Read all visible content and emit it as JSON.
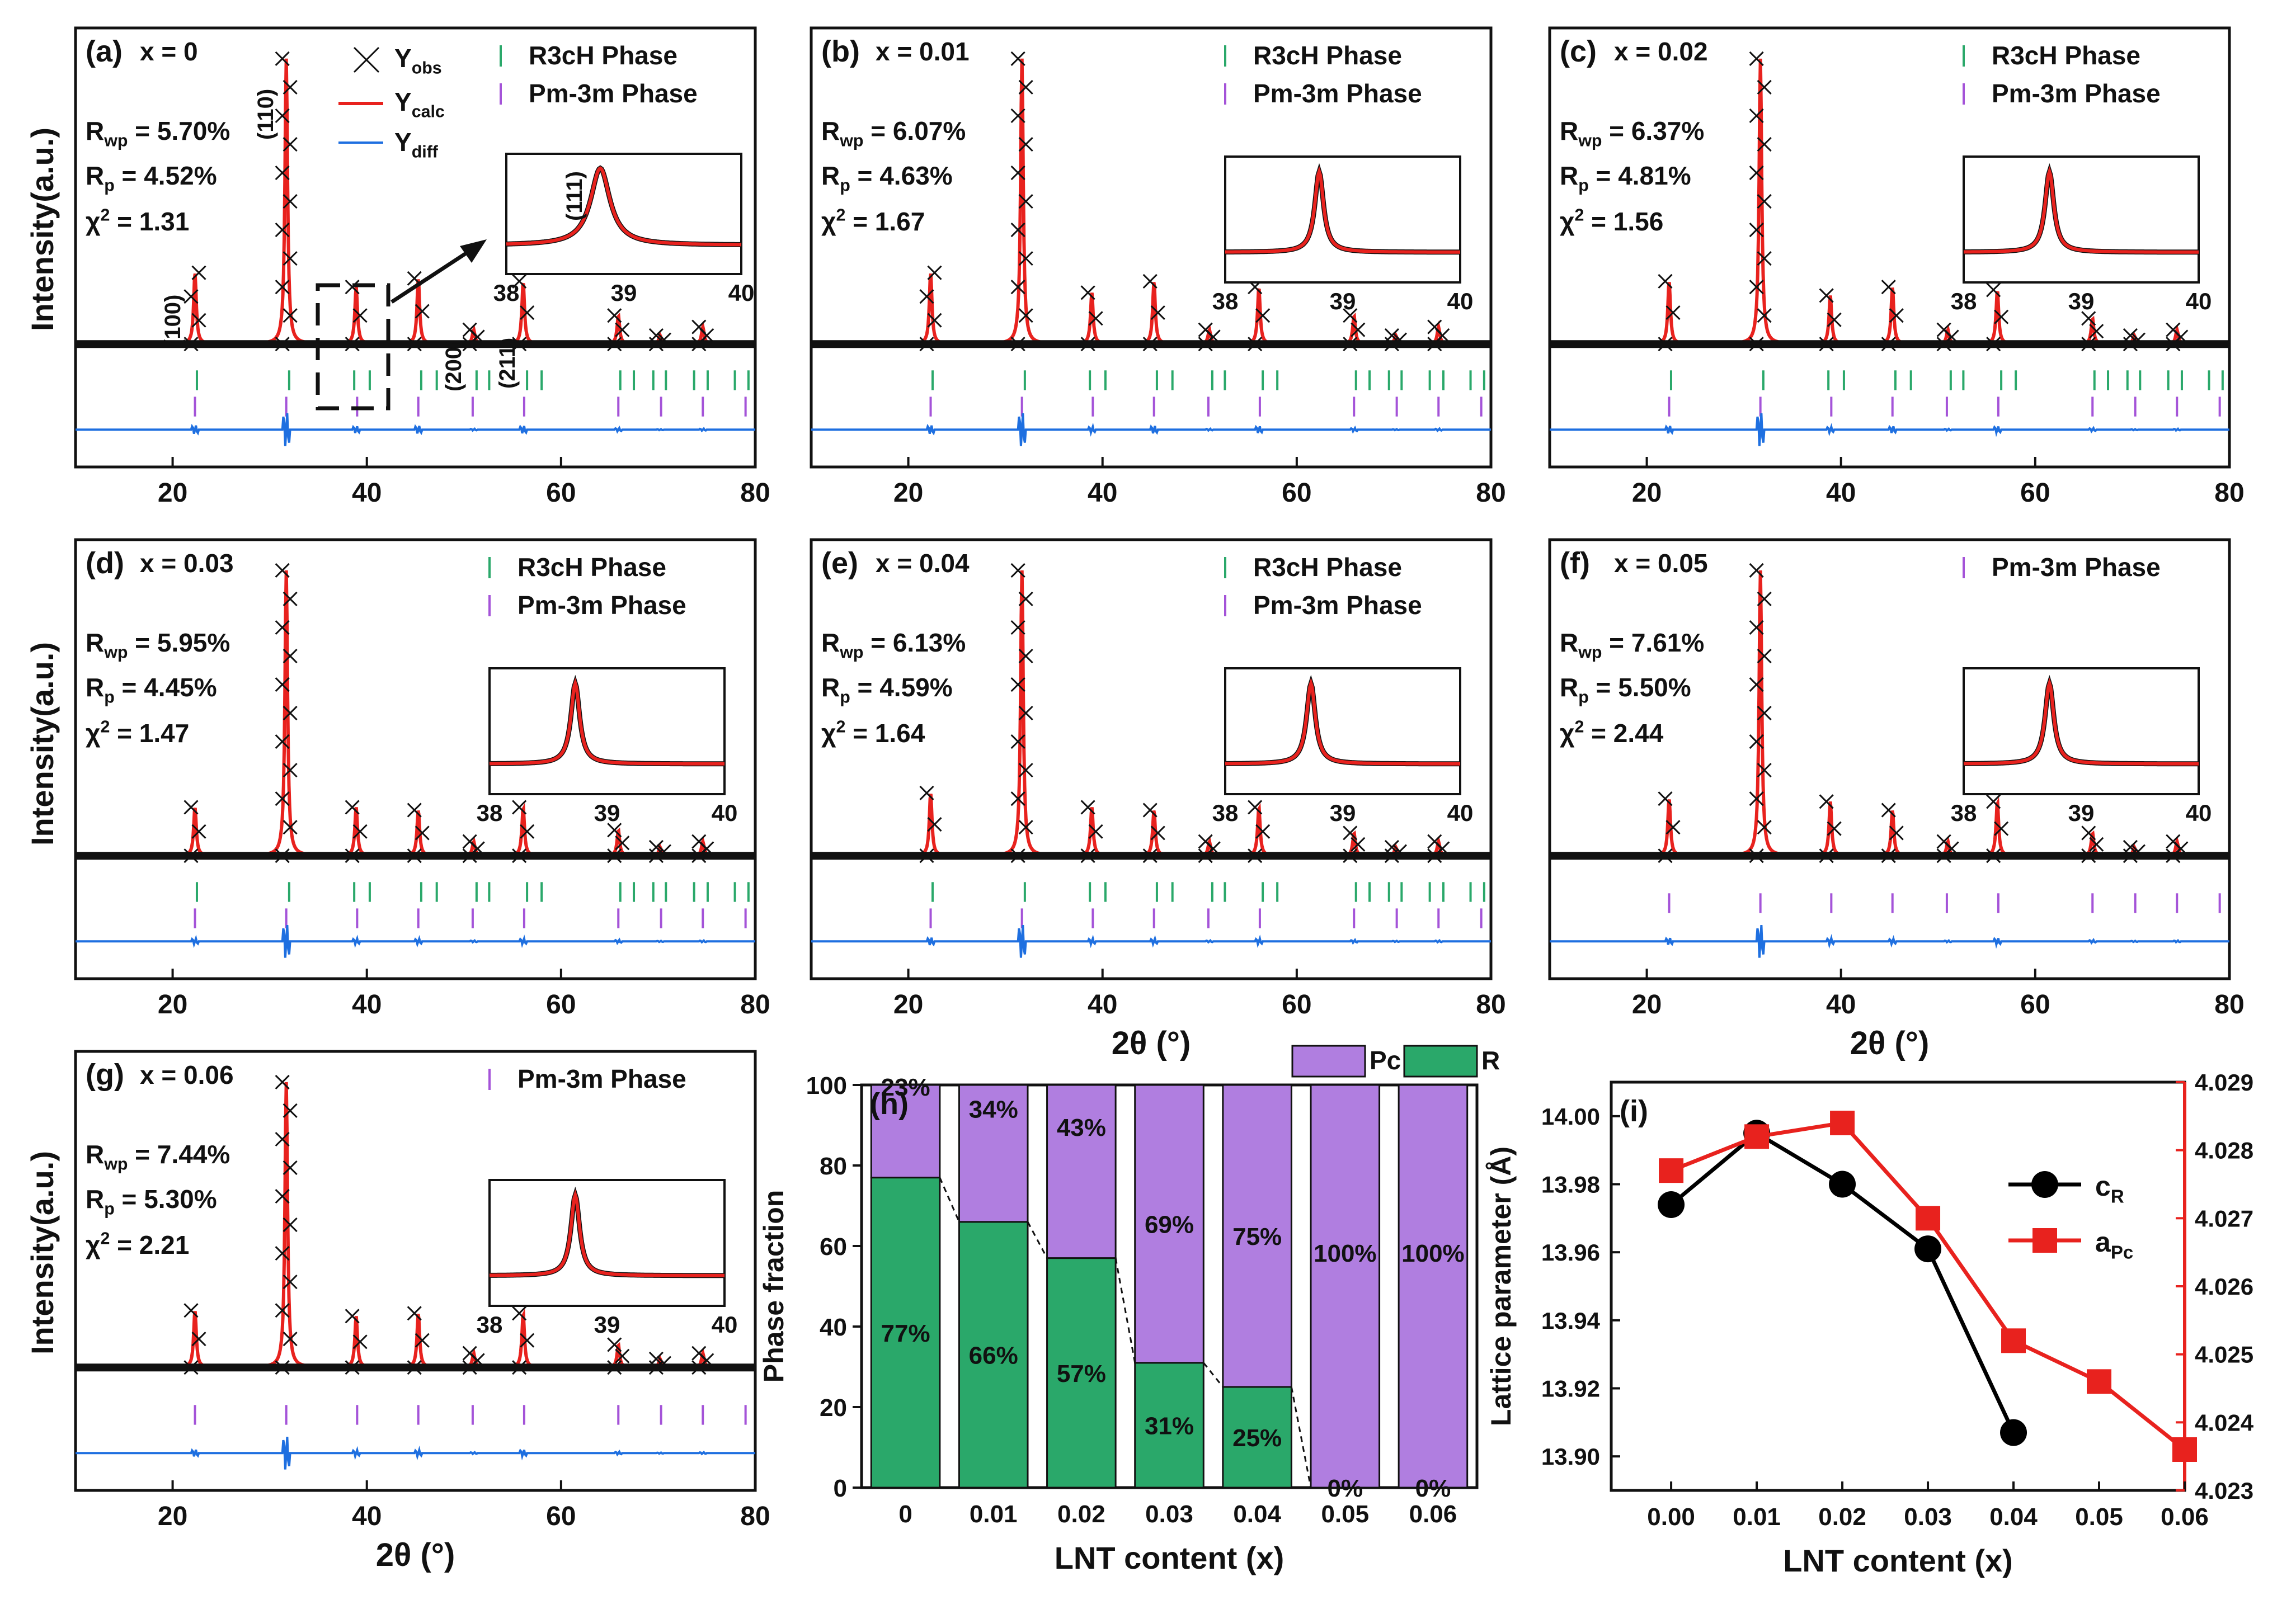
{
  "figure": {
    "shared_labels": {
      "x_axis_label": "2θ (°)",
      "y_axis_label": "Intensity(a.u.)",
      "inset_ticks": [
        "38",
        "39",
        "40"
      ],
      "x_ticks": [
        "20",
        "40",
        "60",
        "80"
      ]
    },
    "legend": {
      "obs": "Y",
      "obs_sub": "obs",
      "calc": "Y",
      "calc_sub": "calc",
      "diff": "Y",
      "diff_sub": "diff",
      "r3c": "R3cH Phase",
      "pm3m": "Pm-3m Phase"
    },
    "hkl_labels": [
      "(100)",
      "(110)",
      "(111)",
      "(200)",
      "(211)",
      "(111)"
    ],
    "colors": {
      "obs": "#111111",
      "calc": "#e8221e",
      "diff": "#1e6fe0",
      "r3c_tick": "#2aa86a",
      "pm3m_tick": "#a453d8",
      "pc_bar": "#b07ee0",
      "r_bar": "#2aa86a",
      "lattice_c": "#000000",
      "lattice_a": "#e8221e"
    }
  },
  "chart_data": [
    {
      "panel": "(a)",
      "type": "line",
      "composition": "x = 0",
      "rwp_label": "R",
      "rwp_sub": "wp",
      "rwp_value": " = 5.70%",
      "rp_label": "R",
      "rp_sub": "p",
      "rp_value": " = 4.52%",
      "chi_label": "χ",
      "chi_sup": "2",
      "chi_value": " = 1.31",
      "phases": [
        "R3cH Phase",
        "Pm-3m Phase"
      ],
      "xlim": [
        10,
        80
      ],
      "peaks": [
        [
          22.3,
          0.25
        ],
        [
          31.7,
          1.0
        ],
        [
          38.9,
          0.2
        ],
        [
          45.3,
          0.23
        ],
        [
          51.0,
          0.05
        ],
        [
          56.1,
          0.22
        ],
        [
          65.9,
          0.1
        ],
        [
          70.2,
          0.03
        ],
        [
          74.6,
          0.06
        ]
      ],
      "xlabel": ""
    },
    {
      "panel": "(b)",
      "type": "line",
      "composition": "x = 0.01",
      "rwp_label": "R",
      "rwp_sub": "wp",
      "rwp_value": " = 6.07%",
      "rp_label": "R",
      "rp_sub": "p",
      "rp_value": " = 4.63%",
      "chi_label": "χ",
      "chi_sup": "2",
      "chi_value": " = 1.67",
      "phases": [
        "R3cH Phase",
        "Pm-3m Phase"
      ],
      "xlim": [
        10,
        80
      ],
      "peaks": [
        [
          22.3,
          0.25
        ],
        [
          31.7,
          1.0
        ],
        [
          38.9,
          0.18
        ],
        [
          45.3,
          0.22
        ],
        [
          51.0,
          0.05
        ],
        [
          56.1,
          0.2
        ],
        [
          65.9,
          0.1
        ],
        [
          70.2,
          0.03
        ],
        [
          74.6,
          0.06
        ]
      ],
      "xlabel": ""
    },
    {
      "panel": "(c)",
      "type": "line",
      "composition": "x = 0.02",
      "rwp_label": "R",
      "rwp_sub": "wp",
      "rwp_value": " = 6.37%",
      "rp_label": "R",
      "rp_sub": "p",
      "rp_value": " = 4.81%",
      "chi_label": "χ",
      "chi_sup": "2",
      "chi_value": " = 1.56",
      "phases": [
        "R3cH Phase",
        "Pm-3m Phase"
      ],
      "xlim": [
        10,
        80
      ],
      "peaks": [
        [
          22.3,
          0.22
        ],
        [
          31.7,
          1.0
        ],
        [
          38.9,
          0.17
        ],
        [
          45.3,
          0.2
        ],
        [
          51.0,
          0.05
        ],
        [
          56.1,
          0.19
        ],
        [
          65.9,
          0.09
        ],
        [
          70.2,
          0.03
        ],
        [
          74.6,
          0.05
        ]
      ],
      "xlabel": ""
    },
    {
      "panel": "(d)",
      "type": "line",
      "composition": "x = 0.03",
      "rwp_label": "R",
      "rwp_sub": "wp",
      "rwp_value": " = 5.95%",
      "rp_label": "R",
      "rp_sub": "p",
      "rp_value": " = 4.45%",
      "chi_label": "χ",
      "chi_sup": "2",
      "chi_value": " = 1.47",
      "phases": [
        "R3cH Phase",
        "Pm-3m Phase"
      ],
      "xlim": [
        10,
        80
      ],
      "peaks": [
        [
          22.3,
          0.17
        ],
        [
          31.7,
          1.0
        ],
        [
          38.9,
          0.17
        ],
        [
          45.3,
          0.16
        ],
        [
          51.0,
          0.05
        ],
        [
          56.1,
          0.17
        ],
        [
          65.9,
          0.09
        ],
        [
          70.2,
          0.03
        ],
        [
          74.6,
          0.05
        ]
      ],
      "xlabel": ""
    },
    {
      "panel": "(e)",
      "type": "line",
      "composition": "x = 0.04",
      "rwp_label": "R",
      "rwp_sub": "wp",
      "rwp_value": " = 6.13%",
      "rp_label": "R",
      "rp_sub": "p",
      "rp_value": " = 4.59%",
      "chi_label": "χ",
      "chi_sup": "2",
      "chi_value": " = 1.64",
      "phases": [
        "R3cH Phase",
        "Pm-3m Phase"
      ],
      "xlim": [
        10,
        80
      ],
      "peaks": [
        [
          22.3,
          0.22
        ],
        [
          31.7,
          1.0
        ],
        [
          38.9,
          0.17
        ],
        [
          45.3,
          0.16
        ],
        [
          51.0,
          0.05
        ],
        [
          56.1,
          0.17
        ],
        [
          65.9,
          0.08
        ],
        [
          70.2,
          0.03
        ],
        [
          74.6,
          0.05
        ]
      ],
      "xlabel": "2θ (°)"
    },
    {
      "panel": "(f)",
      "type": "line",
      "composition": "x = 0.05",
      "rwp_label": "R",
      "rwp_sub": "wp",
      "rwp_value": " = 7.61%",
      "rp_label": "R",
      "rp_sub": "p",
      "rp_value": " = 5.50%",
      "chi_label": "χ",
      "chi_sup": "2",
      "chi_value": " = 2.44",
      "phases": [
        "Pm-3m Phase"
      ],
      "xlim": [
        10,
        80
      ],
      "peaks": [
        [
          22.3,
          0.2
        ],
        [
          31.7,
          1.0
        ],
        [
          38.9,
          0.19
        ],
        [
          45.3,
          0.16
        ],
        [
          51.0,
          0.05
        ],
        [
          56.1,
          0.19
        ],
        [
          65.9,
          0.08
        ],
        [
          70.2,
          0.03
        ],
        [
          74.6,
          0.05
        ]
      ],
      "xlabel": "2θ (°)"
    },
    {
      "panel": "(g)",
      "type": "line",
      "composition": "x = 0.06",
      "rwp_label": "R",
      "rwp_sub": "wp",
      "rwp_value": " = 7.44%",
      "rp_label": "R",
      "rp_sub": "p",
      "rp_value": " = 5.30%",
      "chi_label": "χ",
      "chi_sup": "2",
      "chi_value": " = 2.21",
      "phases": [
        "Pm-3m Phase"
      ],
      "xlim": [
        10,
        80
      ],
      "peaks": [
        [
          22.3,
          0.2
        ],
        [
          31.7,
          1.0
        ],
        [
          38.9,
          0.18
        ],
        [
          45.3,
          0.19
        ],
        [
          51.0,
          0.05
        ],
        [
          56.1,
          0.19
        ],
        [
          65.9,
          0.08
        ],
        [
          70.2,
          0.03
        ],
        [
          74.6,
          0.05
        ]
      ],
      "xlabel": "2θ (°)"
    },
    {
      "panel": "(h)",
      "type": "bar",
      "stacked": true,
      "xlabel": "LNT content (x)",
      "ylabel": "Phase fraction",
      "ylim": [
        0,
        100
      ],
      "yticks": [
        0,
        20,
        40,
        60,
        80,
        100
      ],
      "categories": [
        "0",
        "0.01",
        "0.02",
        "0.03",
        "0.04",
        "0.05",
        "0.06"
      ],
      "series": [
        {
          "name": "R",
          "values": [
            77,
            66,
            57,
            31,
            25,
            0,
            0
          ],
          "labels": [
            "77%",
            "66%",
            "57%",
            "31%",
            "25%",
            "0%",
            "0%"
          ]
        },
        {
          "name": "Pc",
          "values": [
            23,
            34,
            43,
            69,
            75,
            100,
            100
          ],
          "labels": [
            "23%",
            "34%",
            "43%",
            "69%",
            "75%",
            "100%",
            "100%"
          ]
        }
      ],
      "legend": [
        "Pc",
        "R"
      ]
    },
    {
      "panel": "(i)",
      "type": "line",
      "xlabel": "LNT content (x)",
      "ylabel": "Lattice parameter (Å)",
      "x": [
        0.0,
        0.01,
        0.02,
        0.03,
        0.04,
        0.05,
        0.06
      ],
      "xticks": [
        "0.00",
        "0.01",
        "0.02",
        "0.03",
        "0.04",
        "0.05",
        "0.06"
      ],
      "ylim_left": [
        13.89,
        14.01
      ],
      "yticks_left": [
        "13.90",
        "13.92",
        "13.94",
        "13.96",
        "13.98",
        "14.00"
      ],
      "ylim_right": [
        4.023,
        4.029
      ],
      "yticks_right": [
        "4.023",
        "4.024",
        "4.025",
        "4.026",
        "4.027",
        "4.028",
        "4.029"
      ],
      "series": [
        {
          "name": "c",
          "name_sub": "R",
          "axis": "left",
          "x": [
            0.0,
            0.01,
            0.02,
            0.03,
            0.04
          ],
          "values": [
            13.974,
            13.995,
            13.98,
            13.961,
            13.907
          ]
        },
        {
          "name": "a",
          "name_sub": "Pc",
          "axis": "right",
          "x": [
            0.0,
            0.01,
            0.02,
            0.03,
            0.04,
            0.05,
            0.06
          ],
          "values": [
            4.0277,
            4.0282,
            4.0284,
            4.027,
            4.0252,
            4.0246,
            4.0236
          ]
        }
      ]
    }
  ]
}
